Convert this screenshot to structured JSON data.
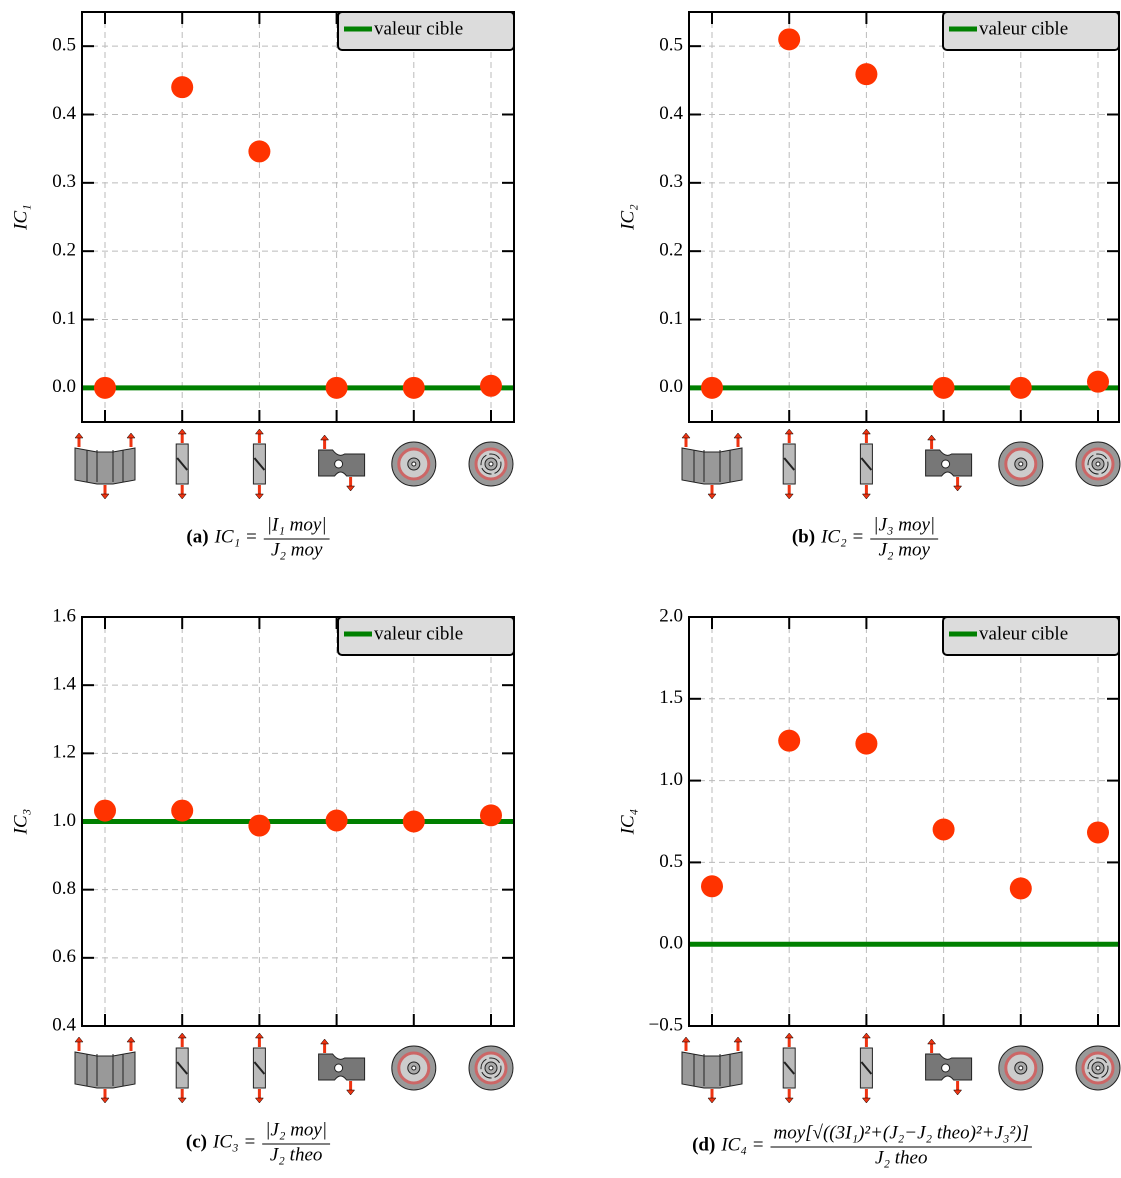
{
  "chart_data": [
    {
      "type": "scatter",
      "categories": [
        null,
        null,
        null,
        null,
        null,
        null
      ],
      "values": [
        0,
        0.44,
        0.346,
        0,
        0,
        0.003
      ],
      "color": "#ff3300",
      "ylim": [
        -0.05,
        0.55
      ],
      "yticks": [
        {
          "value": 0,
          "label": "0.0"
        },
        0.1,
        0.2,
        0.3,
        0.4,
        0.5
      ],
      "ylabel": "IC₁",
      "grid": true,
      "legend": "upper right",
      "reference": {
        "name": "valeur cible",
        "value": 0,
        "color": "#008000"
      },
      "caption": {
        "label": "(a)",
        "lhs": "IC₁ =",
        "numerator": "|I₁ moy|",
        "denominator": "J₂ moy"
      }
    },
    {
      "type": "scatter",
      "categories": [
        null,
        null,
        null,
        null,
        null,
        null
      ],
      "values": [
        0,
        0.51,
        0.459,
        0,
        0,
        0.009
      ],
      "color": "#ff3300",
      "ylim": [
        -0.05,
        0.55
      ],
      "yticks": [
        {
          "value": 0,
          "label": "0.0"
        },
        0.1,
        0.2,
        0.3,
        0.4,
        0.5
      ],
      "ylabel": "IC₂",
      "grid": true,
      "legend": "upper right",
      "reference": {
        "name": "valeur cible",
        "value": 0,
        "color": "#008000"
      },
      "caption": {
        "label": "(b)",
        "lhs": "IC₂ =",
        "numerator": "|J₃ moy|",
        "denominator": "J₂ moy"
      }
    },
    {
      "type": "scatter",
      "categories": [
        null,
        null,
        null,
        null,
        null,
        null
      ],
      "values": [
        1.032,
        1.032,
        0.988,
        1.003,
        1.0,
        1.018
      ],
      "color": "#ff3300",
      "ylim": [
        0.4,
        1.6
      ],
      "yticks": [
        0.4,
        0.6,
        0.8,
        {
          "value": 1,
          "label": "1.0"
        },
        1.2,
        1.4,
        1.6
      ],
      "ylabel": "IC₃",
      "grid": true,
      "legend": "upper right",
      "reference": {
        "name": "valeur cible",
        "value": 1,
        "color": "#008000"
      },
      "caption": {
        "label": "(c)",
        "lhs": "IC₃ =",
        "numerator": "|J₂ moy|",
        "denominator": "J₂ theo"
      }
    },
    {
      "type": "scatter",
      "categories": [
        null,
        null,
        null,
        null,
        null,
        null
      ],
      "values": [
        0.354,
        1.244,
        1.226,
        0.701,
        0.341,
        0.683
      ],
      "color": "#ff3300",
      "ylim": [
        -0.5,
        2.0
      ],
      "yticks": [
        {
          "value": -0.5,
          "label": "−0.5"
        },
        {
          "value": 0,
          "label": "0.0"
        },
        0.5,
        {
          "value": 1,
          "label": "1.0"
        },
        1.5,
        {
          "value": 2,
          "label": "2.0"
        }
      ],
      "ylabel": "IC₄",
      "grid": true,
      "legend": "upper right",
      "reference": {
        "name": "valeur cible",
        "value": 0,
        "color": "#008000"
      },
      "caption": {
        "label": "(d)",
        "lhs": "IC₄ =",
        "numerator": "moy[√((3I₁)²+(J₂−J₂ theo)²+J₃²)]",
        "denominator": "J₂ theo"
      }
    }
  ]
}
